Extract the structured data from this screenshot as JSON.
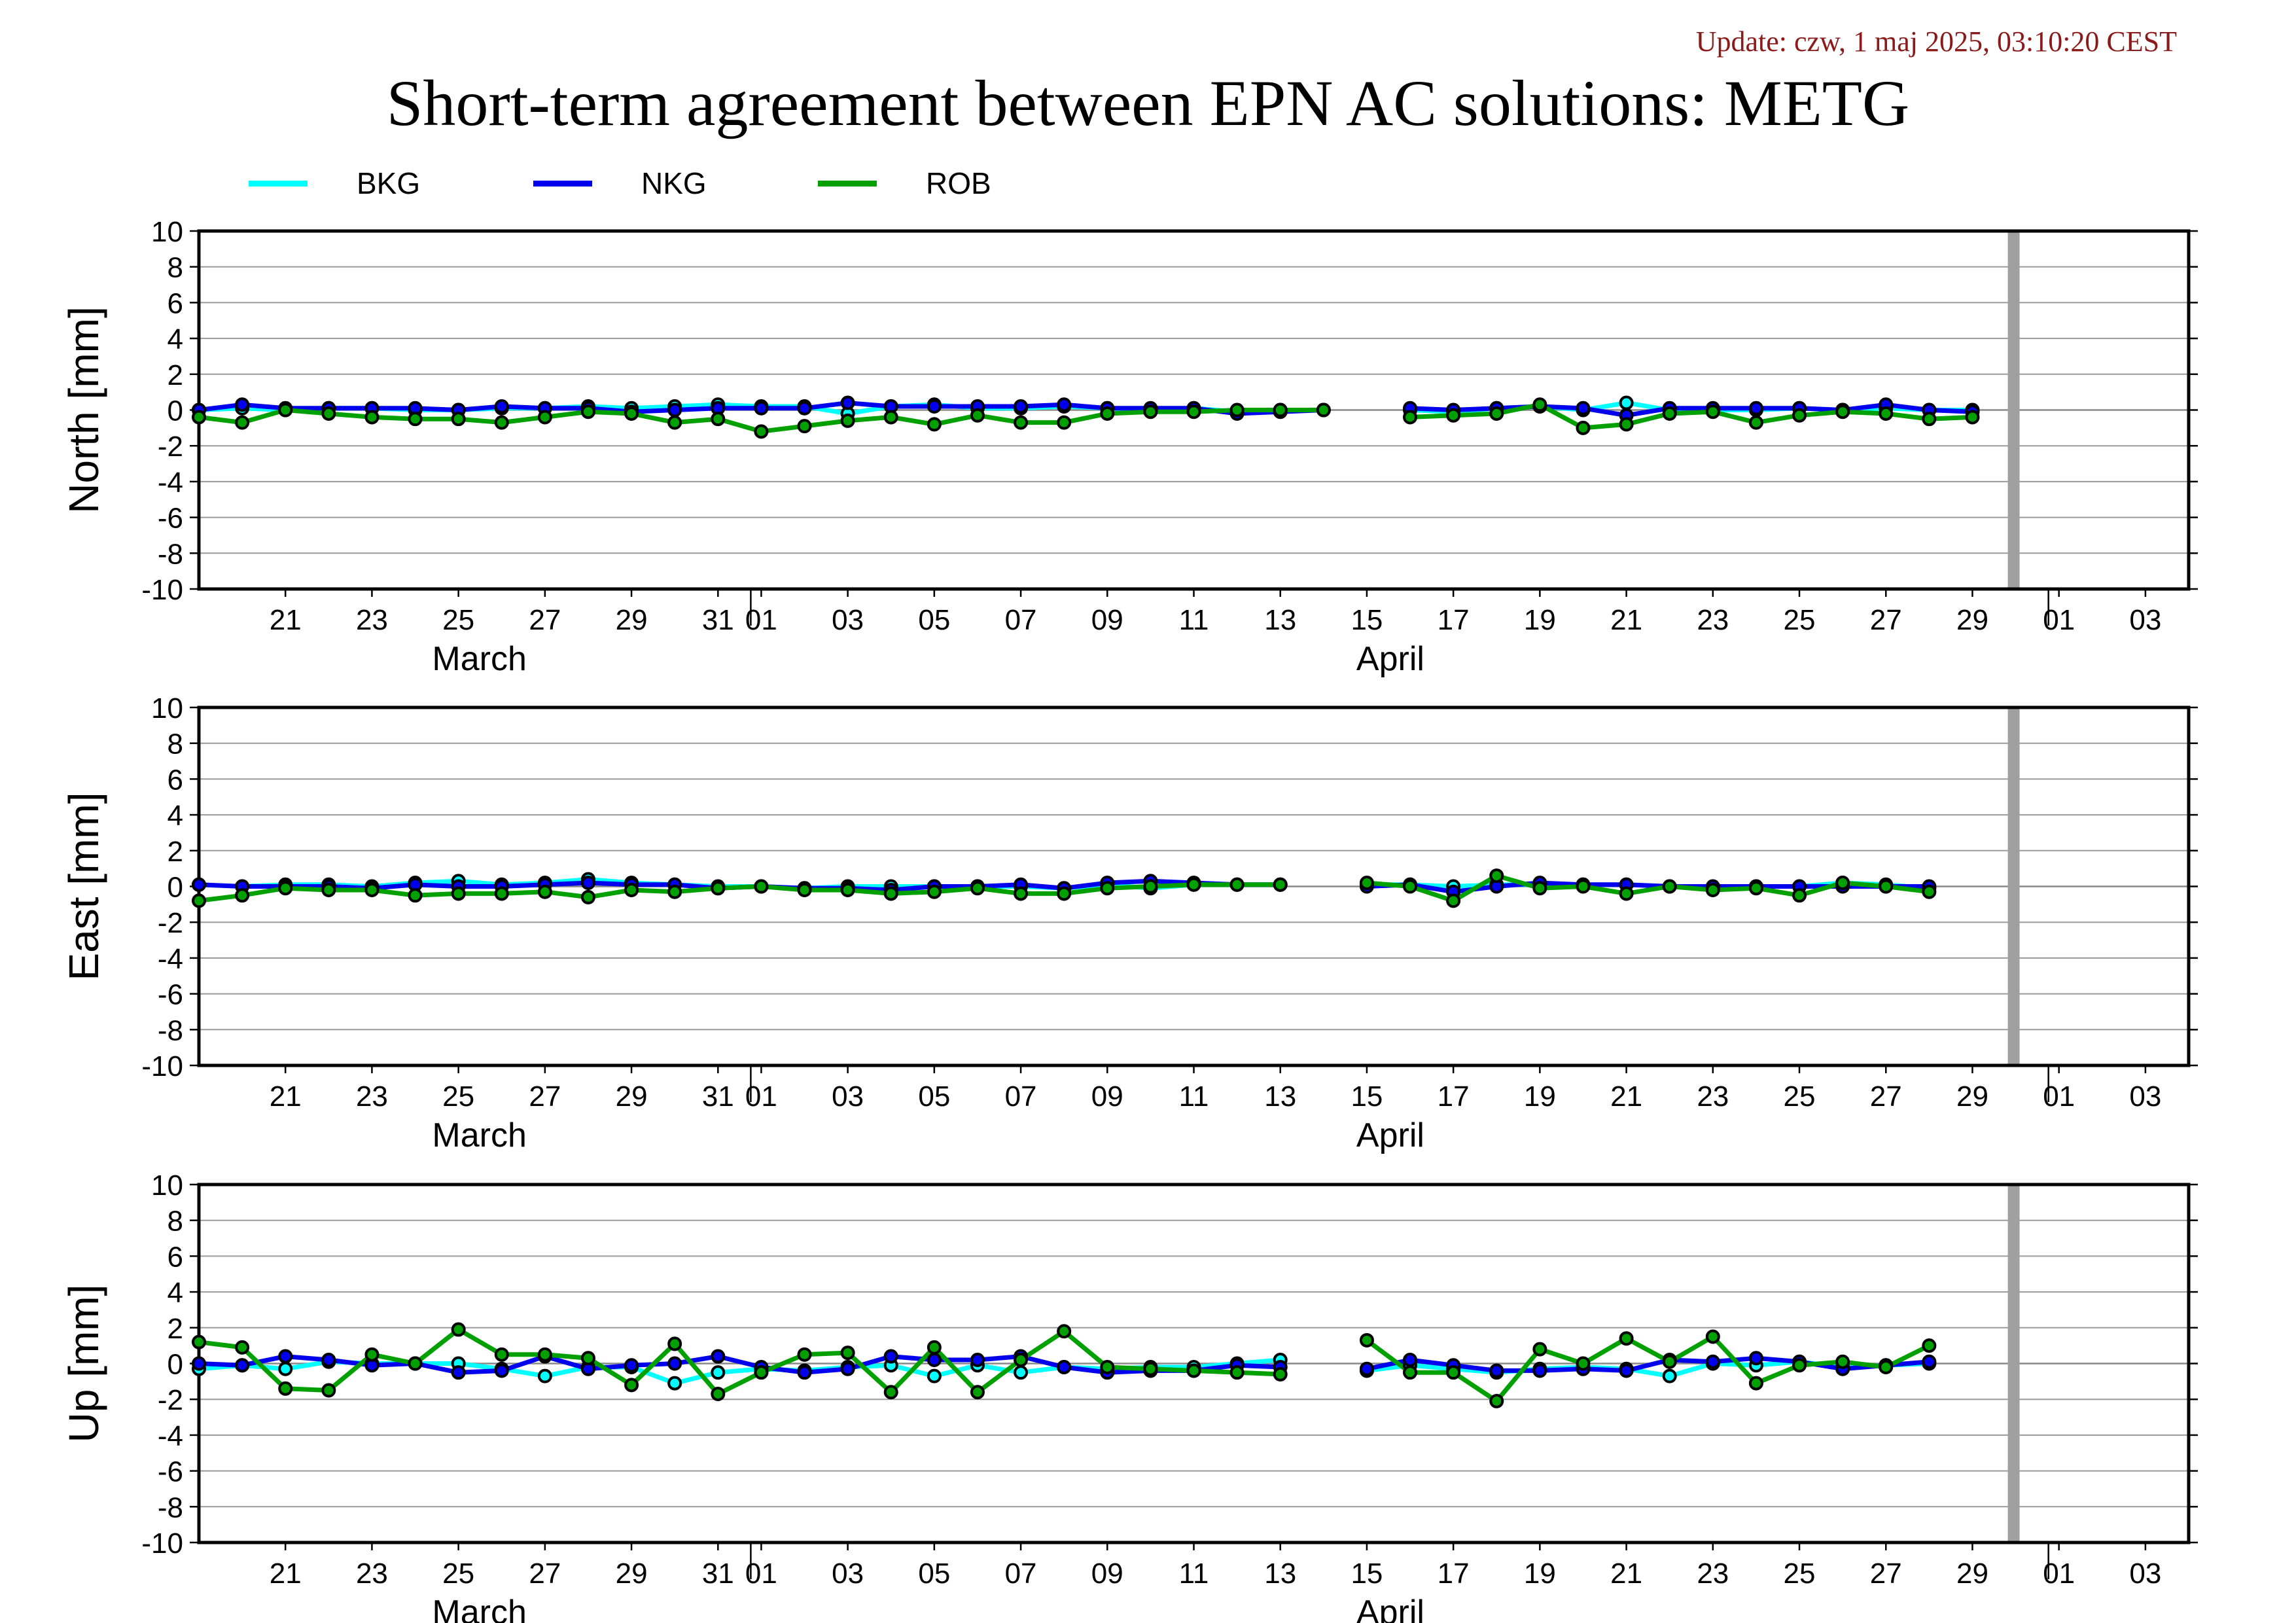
{
  "header": {
    "update": "Update: czw, 1 maj 2025, 03:10:20 CEST",
    "title": "Short-term agreement between EPN AC solutions: METG"
  },
  "legend": [
    {
      "label": "BKG",
      "color": "#00ffff"
    },
    {
      "label": "NKG",
      "color": "#0000ee"
    },
    {
      "label": "ROB",
      "color": "#00a000"
    }
  ],
  "chart_data": [
    {
      "type": "line",
      "ylabel": "North [mm]",
      "ylim": [
        -10,
        10
      ],
      "yticks": [
        10,
        8,
        6,
        4,
        2,
        0,
        -2,
        -4,
        -6,
        -8,
        -10
      ],
      "xlim": [
        "2025-03-19",
        "2025-05-04"
      ],
      "xtick_labels": [
        "21",
        "23",
        "25",
        "27",
        "29",
        "31",
        "01",
        "03",
        "05",
        "07",
        "09",
        "11",
        "13",
        "15",
        "17",
        "19",
        "21",
        "23",
        "25",
        "27",
        "29",
        "01",
        "03"
      ],
      "month_labels": [
        "March",
        "April"
      ],
      "gap_marker_date": "2025-04-30",
      "x": [
        "2025-03-19",
        "2025-03-20",
        "2025-03-21",
        "2025-03-22",
        "2025-03-23",
        "2025-03-24",
        "2025-03-25",
        "2025-03-26",
        "2025-03-27",
        "2025-03-28",
        "2025-03-29",
        "2025-03-30",
        "2025-03-31",
        "2025-04-01",
        "2025-04-02",
        "2025-04-03",
        "2025-04-04",
        "2025-04-05",
        "2025-04-06",
        "2025-04-07",
        "2025-04-08",
        "2025-04-09",
        "2025-04-10",
        "2025-04-11",
        "2025-04-12",
        "2025-04-13",
        "2025-04-14",
        "2025-04-15",
        "2025-04-16",
        "2025-04-17",
        "2025-04-18",
        "2025-04-19",
        "2025-04-20",
        "2025-04-21",
        "2025-04-22",
        "2025-04-23",
        "2025-04-24",
        "2025-04-25",
        "2025-04-26",
        "2025-04-27",
        "2025-04-28",
        "2025-04-29"
      ],
      "series": [
        {
          "name": "BKG",
          "values": [
            0.0,
            0.1,
            0.0,
            0.1,
            0.1,
            0.0,
            0.0,
            0.1,
            0.1,
            0.2,
            0.1,
            0.2,
            0.3,
            0.2,
            0.2,
            -0.2,
            0.2,
            0.3,
            0.1,
            0.1,
            0.2,
            0.1,
            0.0,
            0.1,
            -0.1,
            0.0,
            0.0,
            null,
            0.0,
            -0.1,
            0.1,
            0.2,
            0.0,
            0.4,
            0.0,
            0.0,
            0.0,
            0.1,
            0.0,
            0.1,
            0.0,
            0.0
          ]
        },
        {
          "name": "NKG",
          "values": [
            0.0,
            0.3,
            0.1,
            0.1,
            0.1,
            0.1,
            0.0,
            0.2,
            0.1,
            0.1,
            -0.1,
            0.0,
            0.1,
            0.1,
            0.1,
            0.4,
            0.2,
            0.2,
            0.2,
            0.2,
            0.3,
            0.1,
            0.1,
            0.1,
            -0.2,
            -0.1,
            0.0,
            null,
            0.1,
            0.0,
            0.1,
            0.2,
            0.1,
            -0.3,
            0.1,
            0.1,
            0.1,
            0.1,
            0.0,
            0.3,
            0.0,
            -0.1
          ]
        },
        {
          "name": "ROB",
          "values": [
            -0.4,
            -0.7,
            0.0,
            -0.2,
            -0.4,
            -0.5,
            -0.5,
            -0.7,
            -0.4,
            -0.1,
            -0.2,
            -0.7,
            -0.5,
            -1.2,
            -0.9,
            -0.6,
            -0.4,
            -0.8,
            -0.3,
            -0.7,
            -0.7,
            -0.2,
            -0.1,
            -0.1,
            0.0,
            0.0,
            0.0,
            null,
            -0.4,
            -0.3,
            -0.2,
            0.3,
            -1.0,
            -0.8,
            -0.2,
            -0.1,
            -0.7,
            -0.3,
            -0.1,
            -0.2,
            -0.5,
            -0.4
          ]
        }
      ]
    },
    {
      "type": "line",
      "ylabel": "East [mm]",
      "ylim": [
        -10,
        10
      ],
      "yticks": [
        10,
        8,
        6,
        4,
        2,
        0,
        -2,
        -4,
        -6,
        -8,
        -10
      ],
      "xlim": [
        "2025-03-19",
        "2025-05-04"
      ],
      "xtick_labels": [
        "21",
        "23",
        "25",
        "27",
        "29",
        "31",
        "01",
        "03",
        "05",
        "07",
        "09",
        "11",
        "13",
        "15",
        "17",
        "19",
        "21",
        "23",
        "25",
        "27",
        "29",
        "01",
        "03"
      ],
      "month_labels": [
        "March",
        "April"
      ],
      "gap_marker_date": "2025-04-30",
      "x": [
        "2025-03-19",
        "2025-03-20",
        "2025-03-21",
        "2025-03-22",
        "2025-03-23",
        "2025-03-24",
        "2025-03-25",
        "2025-03-26",
        "2025-03-27",
        "2025-03-28",
        "2025-03-29",
        "2025-03-30",
        "2025-03-31",
        "2025-04-01",
        "2025-04-02",
        "2025-04-03",
        "2025-04-04",
        "2025-04-05",
        "2025-04-06",
        "2025-04-07",
        "2025-04-08",
        "2025-04-09",
        "2025-04-10",
        "2025-04-11",
        "2025-04-12",
        "2025-04-13",
        "2025-04-14",
        "2025-04-15",
        "2025-04-16",
        "2025-04-17",
        "2025-04-18",
        "2025-04-19",
        "2025-04-20",
        "2025-04-21",
        "2025-04-22",
        "2025-04-23",
        "2025-04-24",
        "2025-04-25",
        "2025-04-26",
        "2025-04-27",
        "2025-04-28",
        "2025-04-29"
      ],
      "series": [
        {
          "name": "BKG",
          "values": [
            0.1,
            0.0,
            0.1,
            0.1,
            0.0,
            0.2,
            0.3,
            0.1,
            0.2,
            0.4,
            0.2,
            0.1,
            0.0,
            0.0,
            -0.1,
            0.0,
            0.0,
            0.0,
            0.0,
            0.0,
            -0.1,
            0.1,
            -0.1,
            0.1,
            0.1,
            0.1,
            null,
            0.1,
            0.1,
            0.0,
            0.1,
            0.1,
            0.1,
            0.1,
            0.0,
            -0.1,
            0.0,
            0.0,
            0.2,
            0.1,
            -0.1,
            null
          ]
        },
        {
          "name": "NKG",
          "values": [
            0.1,
            0.0,
            0.0,
            0.0,
            -0.1,
            0.1,
            0.0,
            0.0,
            0.1,
            0.2,
            0.1,
            0.1,
            -0.1,
            0.0,
            -0.1,
            -0.1,
            -0.2,
            0.0,
            0.0,
            0.1,
            -0.1,
            0.2,
            0.3,
            0.2,
            0.1,
            0.1,
            null,
            0.0,
            0.1,
            -0.3,
            0.0,
            0.2,
            0.1,
            0.1,
            0.0,
            0.0,
            0.0,
            0.0,
            0.0,
            0.0,
            0.0,
            null
          ]
        },
        {
          "name": "ROB",
          "values": [
            -0.8,
            -0.5,
            -0.1,
            -0.2,
            -0.2,
            -0.5,
            -0.4,
            -0.4,
            -0.3,
            -0.6,
            -0.2,
            -0.3,
            -0.1,
            0.0,
            -0.2,
            -0.2,
            -0.4,
            -0.3,
            -0.1,
            -0.4,
            -0.4,
            -0.1,
            0.0,
            0.1,
            0.1,
            0.1,
            null,
            0.2,
            0.0,
            -0.8,
            0.6,
            -0.1,
            0.0,
            -0.4,
            0.0,
            -0.2,
            -0.1,
            -0.5,
            0.2,
            0.0,
            -0.3,
            null
          ]
        }
      ]
    },
    {
      "type": "line",
      "ylabel": "Up [mm]",
      "ylim": [
        -10,
        10
      ],
      "yticks": [
        10,
        8,
        6,
        4,
        2,
        0,
        -2,
        -4,
        -6,
        -8,
        -10
      ],
      "xlim": [
        "2025-03-19",
        "2025-05-04"
      ],
      "xtick_labels": [
        "21",
        "23",
        "25",
        "27",
        "29",
        "31",
        "01",
        "03",
        "05",
        "07",
        "09",
        "11",
        "13",
        "15",
        "17",
        "19",
        "21",
        "23",
        "25",
        "27",
        "29",
        "01",
        "03"
      ],
      "month_labels": [
        "March",
        "April"
      ],
      "gap_marker_date": "2025-04-30",
      "x": [
        "2025-03-19",
        "2025-03-20",
        "2025-03-21",
        "2025-03-22",
        "2025-03-23",
        "2025-03-24",
        "2025-03-25",
        "2025-03-26",
        "2025-03-27",
        "2025-03-28",
        "2025-03-29",
        "2025-03-30",
        "2025-03-31",
        "2025-04-01",
        "2025-04-02",
        "2025-04-03",
        "2025-04-04",
        "2025-04-05",
        "2025-04-06",
        "2025-04-07",
        "2025-04-08",
        "2025-04-09",
        "2025-04-10",
        "2025-04-11",
        "2025-04-12",
        "2025-04-13",
        "2025-04-14",
        "2025-04-15",
        "2025-04-16",
        "2025-04-17",
        "2025-04-18",
        "2025-04-19",
        "2025-04-20",
        "2025-04-21",
        "2025-04-22",
        "2025-04-23",
        "2025-04-24",
        "2025-04-25",
        "2025-04-26",
        "2025-04-27",
        "2025-04-28",
        "2025-04-29"
      ],
      "series": [
        {
          "name": "BKG",
          "values": [
            -0.3,
            -0.1,
            -0.3,
            0.1,
            0.0,
            0.0,
            0.0,
            -0.3,
            -0.7,
            -0.2,
            -0.2,
            -1.1,
            -0.5,
            -0.3,
            -0.4,
            -0.2,
            -0.1,
            -0.7,
            -0.1,
            -0.5,
            -0.2,
            -0.3,
            -0.2,
            -0.2,
            0.0,
            0.2,
            null,
            -0.4,
            -0.1,
            -0.3,
            -0.5,
            -0.3,
            -0.2,
            -0.3,
            -0.7,
            0.0,
            -0.1,
            0.1,
            -0.2,
            -0.1,
            0.0,
            null
          ]
        },
        {
          "name": "NKG",
          "values": [
            0.0,
            -0.1,
            0.4,
            0.2,
            -0.1,
            0.0,
            -0.5,
            -0.4,
            0.4,
            -0.3,
            -0.1,
            0.0,
            0.4,
            -0.2,
            -0.5,
            -0.3,
            0.4,
            0.2,
            0.2,
            0.4,
            -0.2,
            -0.5,
            -0.4,
            -0.4,
            -0.1,
            -0.2,
            null,
            -0.3,
            0.2,
            -0.1,
            -0.4,
            -0.4,
            -0.3,
            -0.4,
            0.2,
            0.1,
            0.3,
            0.1,
            -0.3,
            -0.1,
            0.1,
            null
          ]
        },
        {
          "name": "ROB",
          "values": [
            1.2,
            0.9,
            -1.4,
            -1.5,
            0.5,
            0.0,
            1.9,
            0.5,
            0.5,
            0.3,
            -1.2,
            1.1,
            -1.7,
            -0.5,
            0.5,
            0.6,
            -1.6,
            0.9,
            -1.6,
            0.2,
            1.8,
            -0.2,
            -0.3,
            -0.4,
            -0.5,
            -0.6,
            null,
            1.3,
            -0.5,
            -0.5,
            -2.1,
            0.8,
            0.0,
            1.4,
            0.1,
            1.5,
            -1.1,
            -0.1,
            0.1,
            -0.2,
            1.0,
            null
          ]
        }
      ]
    }
  ]
}
